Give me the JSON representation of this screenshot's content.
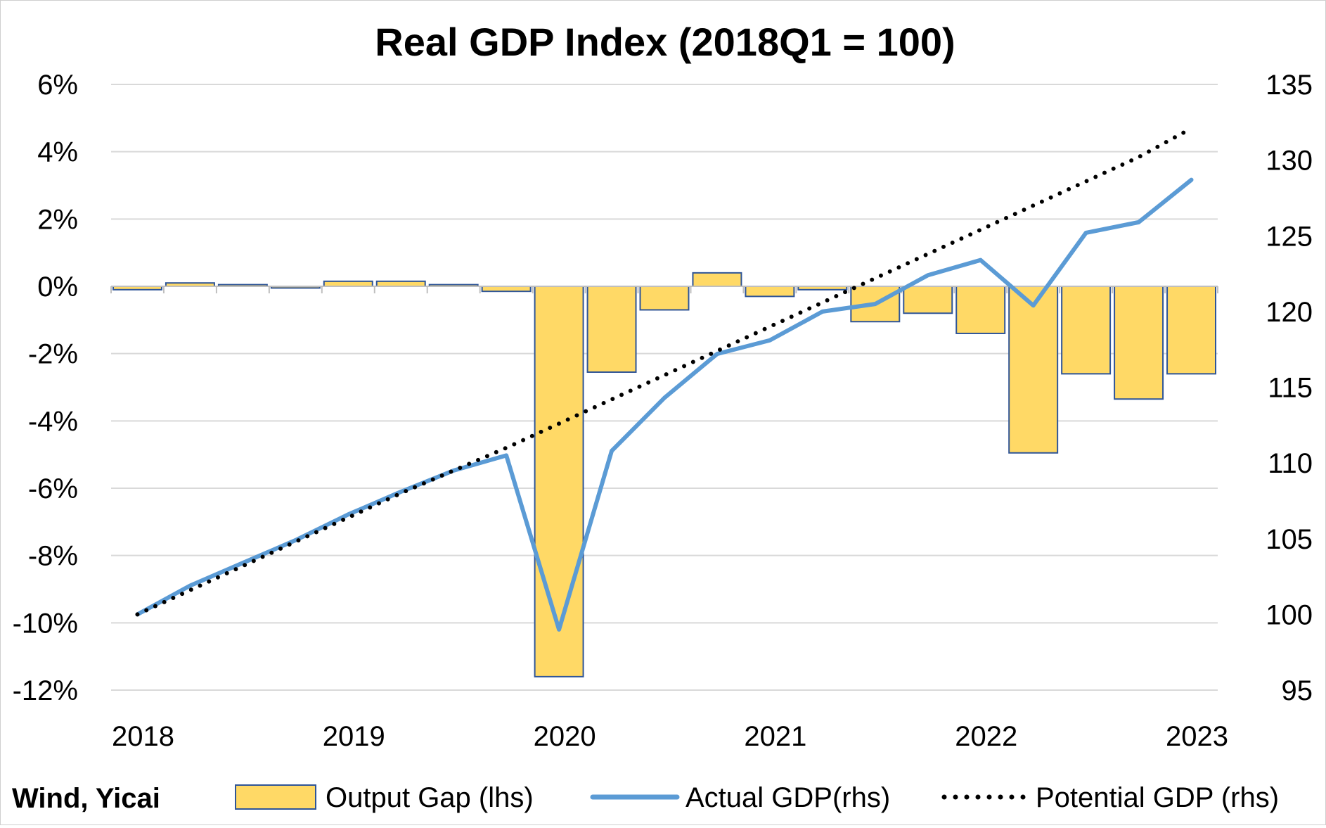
{
  "chart_data": {
    "type": "bar",
    "title": "Real GDP Index (2018Q1 = 100)",
    "source": "Wind, Yicai",
    "x_tick_labels": [
      "2018",
      "2019",
      "2020",
      "2021",
      "2022",
      "2023"
    ],
    "quarters": [
      "2018Q1",
      "2018Q2",
      "2018Q3",
      "2018Q4",
      "2019Q1",
      "2019Q2",
      "2019Q3",
      "2019Q4",
      "2020Q1",
      "2020Q2",
      "2020Q3",
      "2020Q4",
      "2021Q1",
      "2021Q2",
      "2021Q3",
      "2021Q4",
      "2022Q1",
      "2022Q2",
      "2022Q3",
      "2022Q4",
      "2023Q1"
    ],
    "left_axis": {
      "ticks": [
        "6%",
        "4%",
        "2%",
        "0%",
        "-2%",
        "-4%",
        "-6%",
        "-8%",
        "-10%",
        "-12%"
      ],
      "ylim": [
        -12,
        6
      ],
      "unit": "%"
    },
    "right_axis": {
      "ticks": [
        "135",
        "130",
        "125",
        "120",
        "115",
        "110",
        "105",
        "100",
        "95"
      ],
      "ylim": [
        95,
        135
      ]
    },
    "grid": true,
    "legend_position": "bottom",
    "series": [
      {
        "name": "Output Gap (lhs)",
        "type": "bar",
        "axis": "left",
        "color": "#FFD966",
        "edge_color": "#2F5597",
        "values": [
          -0.1,
          0.1,
          0.05,
          -0.05,
          0.15,
          0.15,
          0.05,
          -0.15,
          -11.6,
          -2.55,
          -0.7,
          0.4,
          -0.3,
          -0.1,
          -1.05,
          -0.8,
          -1.4,
          -4.95,
          -2.6,
          -3.35,
          -2.6
        ]
      },
      {
        "name": "Actual GDP(rhs)",
        "type": "line",
        "axis": "right",
        "color": "#5B9BD5",
        "values": [
          100.0,
          101.9,
          103.4,
          104.9,
          106.6,
          108.1,
          109.5,
          110.5,
          99.0,
          110.8,
          114.3,
          117.2,
          118.1,
          120.0,
          120.5,
          122.4,
          123.4,
          120.4,
          125.2,
          125.9,
          128.7
        ]
      },
      {
        "name": "Potential GDP (rhs)",
        "type": "line",
        "style": "dotted",
        "axis": "right",
        "color": "#000000",
        "values": [
          100.0,
          101.6,
          103.2,
          104.8,
          106.4,
          108.0,
          109.5,
          111.0,
          112.6,
          114.2,
          115.8,
          117.4,
          119.0,
          120.6,
          122.2,
          123.8,
          125.4,
          127.0,
          128.6,
          130.2,
          132.1
        ]
      }
    ]
  }
}
